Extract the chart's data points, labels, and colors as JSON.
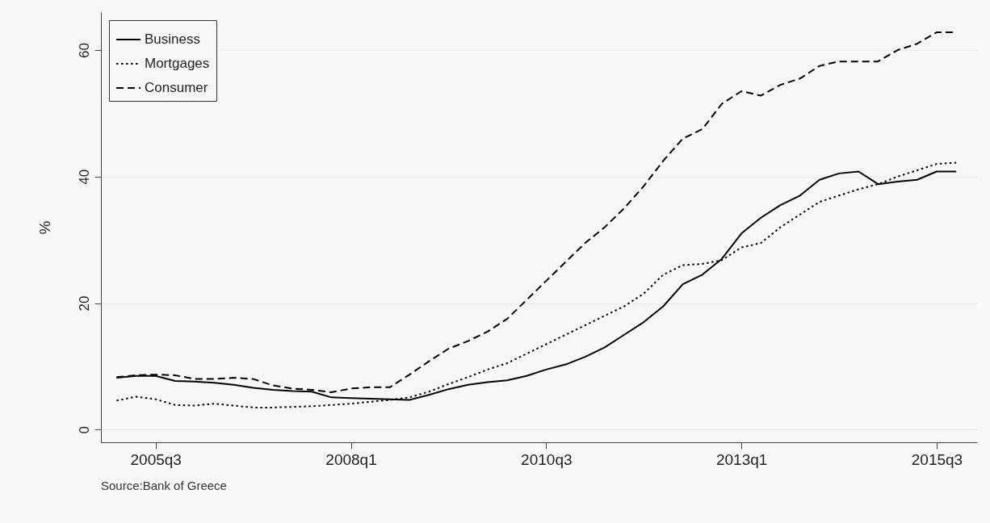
{
  "chart_data": {
    "type": "line",
    "ylabel": "%",
    "annotations": [
      "Source:Bank of Greece"
    ],
    "categories": [
      null,
      null,
      "2005q3",
      null,
      null,
      null,
      null,
      null,
      null,
      null,
      null,
      null,
      "2008q1",
      null,
      null,
      null,
      null,
      null,
      null,
      null,
      null,
      null,
      "2010q3",
      null,
      null,
      null,
      null,
      null,
      null,
      null,
      null,
      null,
      "2013q1",
      null,
      null,
      null,
      null,
      null,
      null,
      null,
      null,
      null,
      "2015q3",
      null
    ],
    "series": [
      {
        "name": "Business",
        "color": "#000000",
        "line_style": "solid",
        "values": [
          8.2,
          8.5,
          8.5,
          7.7,
          7.6,
          7.4,
          7.1,
          6.6,
          6.3,
          6.1,
          6.0,
          5.1,
          5.0,
          4.9,
          4.8,
          4.7,
          5.5,
          6.4,
          7.1,
          7.5,
          7.8,
          8.5,
          9.5,
          10.3,
          11.5,
          13,
          15,
          17,
          19.5,
          23,
          24.5,
          27,
          31,
          33.5,
          35.5,
          37,
          39.5,
          40.5,
          40.8,
          38.8,
          39.2,
          39.5,
          40.8,
          40.8
        ]
      },
      {
        "name": "Mortgages",
        "color": "#000000",
        "line_style": "dotted",
        "values": [
          4.6,
          5.2,
          4.8,
          3.9,
          3.8,
          4.1,
          3.8,
          3.5,
          3.5,
          3.6,
          3.7,
          3.9,
          4.1,
          4.4,
          4.7,
          5.1,
          6.0,
          7.2,
          8.3,
          9.5,
          10.5,
          12,
          13.5,
          15,
          16.5,
          18,
          19.5,
          21.5,
          24.5,
          26,
          26.2,
          26.8,
          28.8,
          29.5,
          32,
          34,
          36,
          37,
          38,
          38.8,
          40,
          41,
          42,
          42.2
        ]
      },
      {
        "name": "Consumer",
        "color": "#000000",
        "line_style": "dashed",
        "values": [
          8.3,
          8.6,
          8.7,
          8.6,
          8.0,
          8.0,
          8.2,
          8.0,
          7.0,
          6.5,
          6.3,
          5.9,
          6.5,
          6.7,
          6.7,
          8.7,
          10.8,
          12.8,
          14.0,
          15.5,
          17.5,
          20.5,
          23.5,
          26.5,
          29.5,
          32,
          35,
          38.5,
          42.5,
          46,
          47.5,
          51.5,
          53.5,
          52.8,
          54.5,
          55.5,
          57.5,
          58.2,
          58.2,
          58.2,
          60,
          61,
          62.8,
          62.8
        ]
      }
    ],
    "ylim": [
      -2,
      66
    ],
    "yticks": [
      0,
      20,
      40,
      60
    ],
    "grid": "y",
    "legend": "top left"
  }
}
